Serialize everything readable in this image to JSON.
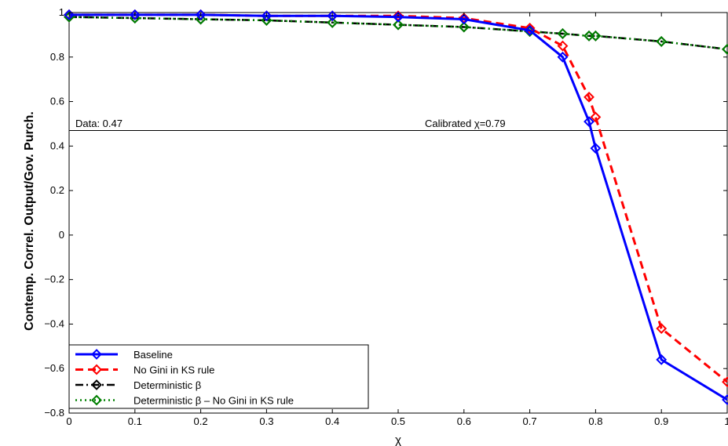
{
  "chart_data": {
    "type": "line",
    "xlabel": "χ",
    "ylabel": "Contemp. Correl. Output/Gov. Purch.",
    "xlim": [
      0,
      1
    ],
    "ylim": [
      -0.8,
      1
    ],
    "x_ticks": [
      0,
      0.1,
      0.2,
      0.3,
      0.4,
      0.5,
      0.6,
      0.7,
      0.8,
      0.9,
      1
    ],
    "x_tick_labels": [
      "0",
      "0.1",
      "0.2",
      "0.3",
      "0.4",
      "0.5",
      "0.6",
      "0.7",
      "0.8",
      "0.9",
      "1"
    ],
    "y_ticks": [
      -0.8,
      -0.6,
      -0.4,
      -0.2,
      0,
      0.2,
      0.4,
      0.6,
      0.8,
      1
    ],
    "y_tick_labels": [
      "−0.8",
      "−0.6",
      "−0.4",
      "−0.2",
      "0",
      "0.2",
      "0.4",
      "0.6",
      "0.8",
      "1"
    ],
    "grid": false,
    "legend_position": "bottom-left",
    "reference_line": {
      "y": 0.47
    },
    "annotations": {
      "data_label": "Data: 0.47",
      "calibrated_label": "Calibrated χ=0.79"
    },
    "series": [
      {
        "name": "Baseline",
        "color": "#0000ff",
        "dash": "solid",
        "marker": "diamond",
        "x": [
          0,
          0.1,
          0.2,
          0.3,
          0.4,
          0.5,
          0.6,
          0.7,
          0.75,
          0.79,
          0.8,
          0.9,
          1
        ],
        "y": [
          0.99,
          0.99,
          0.99,
          0.985,
          0.985,
          0.98,
          0.97,
          0.92,
          0.8,
          0.51,
          0.39,
          -0.56,
          -0.74
        ]
      },
      {
        "name": "No Gini in KS rule",
        "color": "#ff0000",
        "dash": "dashed",
        "marker": "diamond",
        "x": [
          0,
          0.1,
          0.2,
          0.3,
          0.4,
          0.5,
          0.6,
          0.7,
          0.75,
          0.79,
          0.8,
          0.9,
          1
        ],
        "y": [
          0.99,
          0.99,
          0.99,
          0.985,
          0.985,
          0.985,
          0.975,
          0.93,
          0.85,
          0.62,
          0.53,
          -0.42,
          -0.66
        ]
      },
      {
        "name": "Deterministic β",
        "color": "#000000",
        "dash": "dashdot",
        "marker": "diamond",
        "x": [
          0,
          0.1,
          0.2,
          0.3,
          0.4,
          0.5,
          0.6,
          0.7,
          0.75,
          0.79,
          0.8,
          0.9,
          1
        ],
        "y": [
          0.98,
          0.975,
          0.97,
          0.965,
          0.955,
          0.945,
          0.935,
          0.915,
          0.905,
          0.895,
          0.895,
          0.87,
          0.835
        ]
      },
      {
        "name": "Deterministic β – No Gini in KS rule",
        "color": "#008000",
        "dash": "dotted",
        "marker": "diamond",
        "x": [
          0,
          0.1,
          0.2,
          0.3,
          0.4,
          0.5,
          0.6,
          0.7,
          0.75,
          0.79,
          0.8,
          0.9,
          1
        ],
        "y": [
          0.98,
          0.975,
          0.97,
          0.965,
          0.955,
          0.945,
          0.935,
          0.915,
          0.905,
          0.895,
          0.895,
          0.87,
          0.835
        ]
      }
    ]
  }
}
